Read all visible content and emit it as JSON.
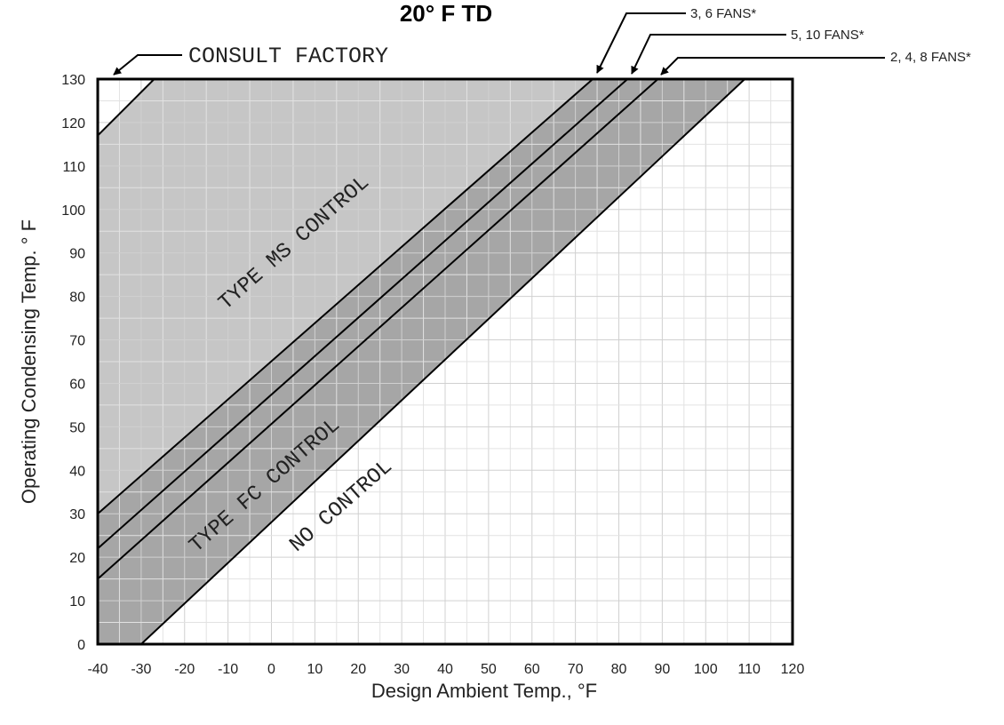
{
  "chart_data": {
    "type": "area",
    "title": "20° F TD",
    "xlabel": "Design Ambient Temp., °F",
    "ylabel": "Operating Condensing Temp. ° F",
    "xlim": [
      -40,
      120
    ],
    "ylim": [
      0,
      130
    ],
    "x_ticks": [
      "-40",
      "-30",
      "-20",
      "-10",
      "0",
      "10",
      "20",
      "30",
      "40",
      "50",
      "60",
      "70",
      "80",
      "90",
      "100",
      "110",
      "120"
    ],
    "y_ticks": [
      "0",
      "10",
      "20",
      "30",
      "40",
      "50",
      "60",
      "70",
      "80",
      "90",
      "100",
      "110",
      "120",
      "130"
    ],
    "grid": true,
    "lines": [
      {
        "name": "CONSULT FACTORY",
        "points": [
          [
            -40,
            117
          ],
          [
            -27,
            130
          ]
        ]
      },
      {
        "name": "3, 6 FANS*",
        "points": [
          [
            -40,
            30
          ],
          [
            74,
            130
          ]
        ]
      },
      {
        "name": "5, 10 FANS*",
        "points": [
          [
            -40,
            22
          ],
          [
            82,
            130
          ]
        ]
      },
      {
        "name": "2, 4, 8 FANS*",
        "points": [
          [
            -40,
            15
          ],
          [
            89,
            130
          ]
        ]
      },
      {
        "name": "",
        "points": [
          [
            -30,
            0
          ],
          [
            109,
            130
          ]
        ]
      }
    ],
    "regions": [
      {
        "label": "CONSULT FACTORY",
        "color": "#ffffff"
      },
      {
        "label": "TYPE MS CONTROL",
        "color": "#c6c6c6"
      },
      {
        "label": "TYPE FC CONTROL",
        "color": "#a6a6a6"
      },
      {
        "label": "NO CONTROL",
        "color": "#ffffff"
      }
    ],
    "annotations": [
      "3, 6 FANS*",
      "5, 10 FANS*",
      "2, 4, 8 FANS*",
      "CONSULT FACTORY"
    ]
  }
}
